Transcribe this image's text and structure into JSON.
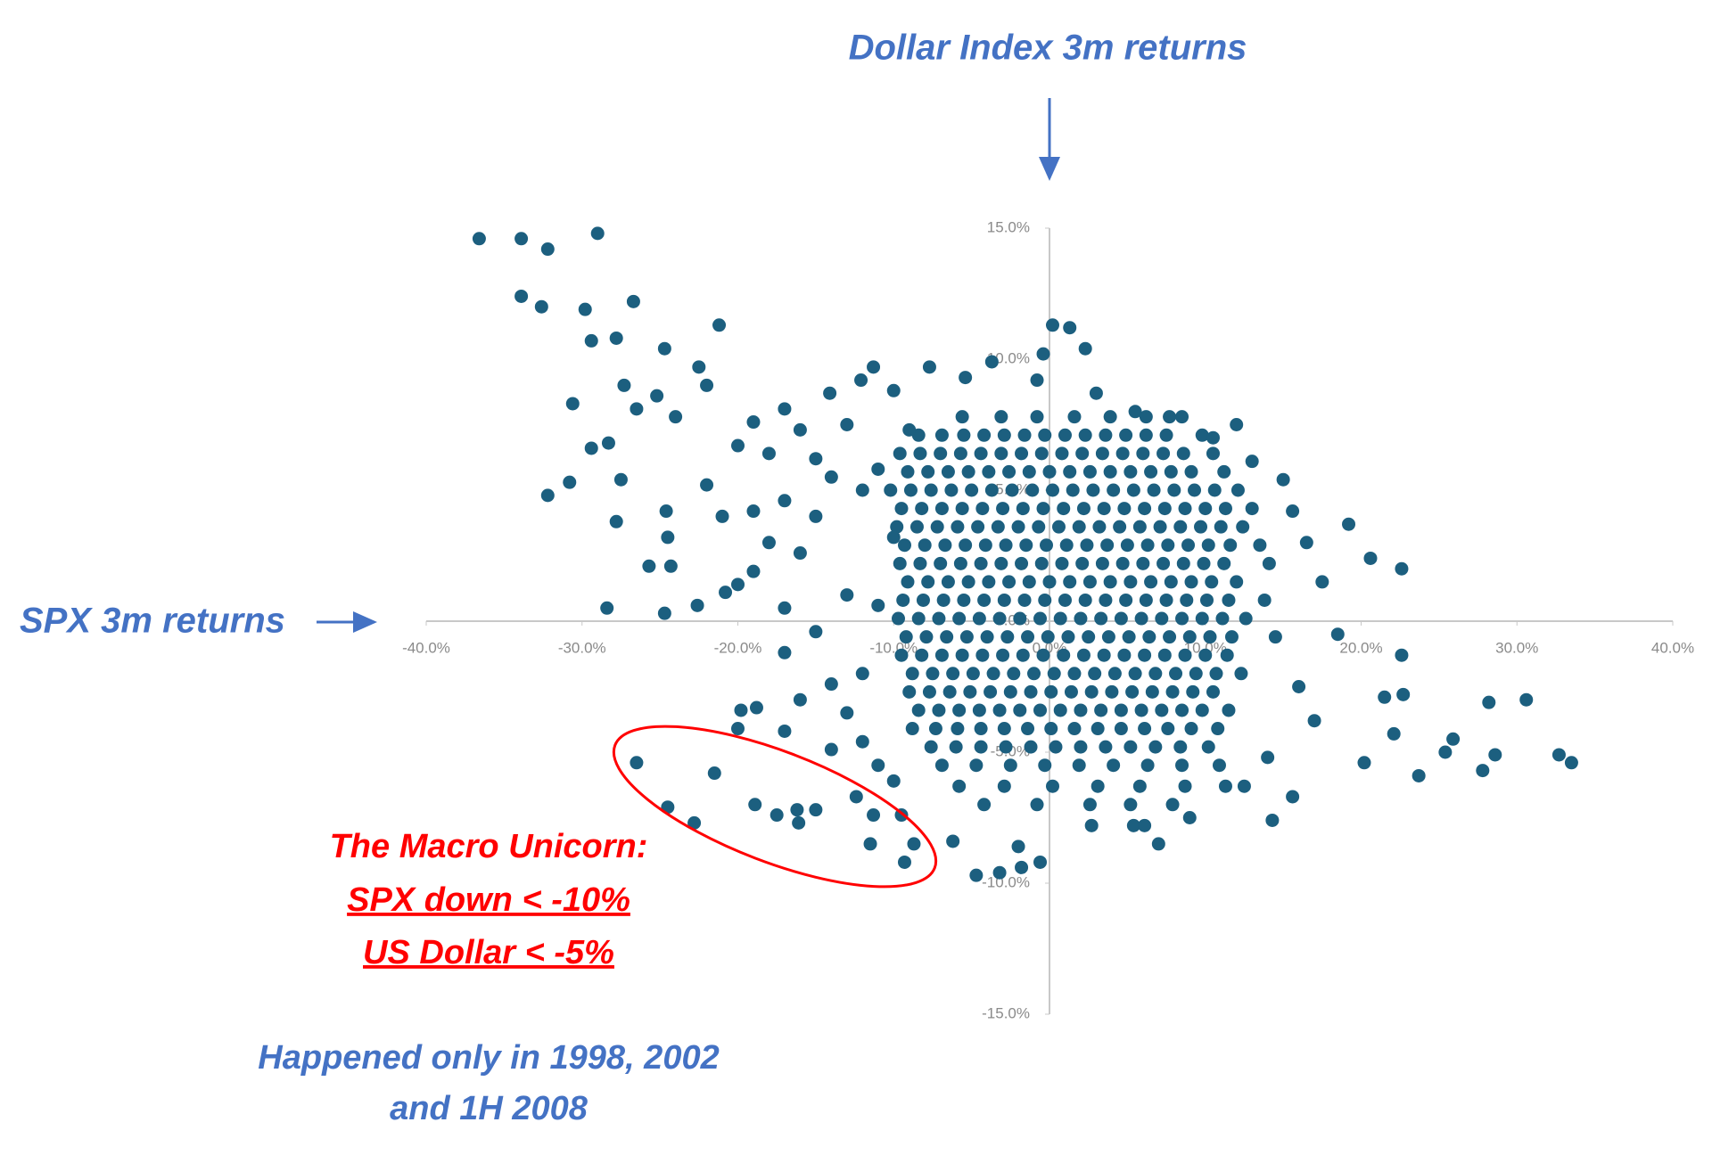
{
  "chart_data": {
    "type": "scatter",
    "x_label": "SPX 3m returns",
    "y_label": "Dollar Index 3m returns",
    "annotation_lines": [
      "The Macro Unicorn:",
      "SPX down < -10%",
      "US Dollar < -5%"
    ],
    "note_lines": [
      "Happened only in 1998, 2002",
      "and 1H 2008"
    ],
    "color": "#1c5f7f",
    "xlim": [
      -40,
      40
    ],
    "ylim": [
      -15,
      15
    ],
    "xticks": [
      {
        "value": -40,
        "label": "-40.0%"
      },
      {
        "value": -30,
        "label": "-30.0%"
      },
      {
        "value": -20,
        "label": "-20.0%"
      },
      {
        "value": -10,
        "label": "-10.0%"
      },
      {
        "value": 0,
        "label": "0.0%"
      },
      {
        "value": 10,
        "label": "10.0%"
      },
      {
        "value": 20,
        "label": "20.0%"
      },
      {
        "value": 30,
        "label": "30.0%"
      },
      {
        "value": 40,
        "label": "40.0%"
      }
    ],
    "yticks": [
      {
        "value": -15,
        "label": "-15.0%"
      },
      {
        "value": -10,
        "label": "-10.0%"
      },
      {
        "value": -5,
        "label": "-5.0%"
      },
      {
        "value": 0,
        "label": "0.0%"
      },
      {
        "value": 5,
        "label": "5.0%"
      },
      {
        "value": 10,
        "label": "10.0%"
      },
      {
        "value": 15,
        "label": "15.0%"
      }
    ],
    "x": [
      -5.6,
      -3.1,
      -0.8,
      1.6,
      3.9,
      6.2,
      7.7,
      -8.4,
      -6.9,
      -5.5,
      -4.2,
      -2.9,
      -1.6,
      -0.3,
      1.0,
      2.3,
      3.6,
      4.9,
      6.2,
      7.5,
      9.8,
      -9.6,
      -8.3,
      -7.0,
      -5.7,
      -4.4,
      -3.1,
      -1.8,
      -0.5,
      0.8,
      2.1,
      3.4,
      4.7,
      6.0,
      7.3,
      8.6,
      10.5,
      -9.1,
      -7.8,
      -6.5,
      -5.2,
      -3.9,
      -2.6,
      -1.3,
      0.0,
      1.3,
      2.6,
      3.9,
      5.2,
      6.5,
      7.8,
      9.1,
      11.2,
      -10.2,
      -8.9,
      -7.6,
      -6.3,
      -5.0,
      -3.7,
      -2.4,
      -1.1,
      0.2,
      1.5,
      2.8,
      4.1,
      5.4,
      6.7,
      8.0,
      9.3,
      10.6,
      12.1,
      -9.5,
      -8.2,
      -6.9,
      -5.6,
      -4.3,
      -3.0,
      -1.7,
      -0.4,
      0.9,
      2.2,
      3.5,
      4.8,
      6.1,
      7.4,
      8.7,
      10.0,
      11.3,
      13.0,
      -9.8,
      -8.5,
      -7.2,
      -5.9,
      -4.6,
      -3.3,
      -2.0,
      -0.7,
      0.6,
      1.9,
      3.2,
      4.5,
      5.8,
      7.1,
      8.4,
      9.7,
      11.0,
      12.4,
      -9.3,
      -8.0,
      -6.7,
      -5.4,
      -4.1,
      -2.8,
      -1.5,
      -0.2,
      1.1,
      2.4,
      3.7,
      5.0,
      6.3,
      7.6,
      8.9,
      10.2,
      11.6,
      13.5,
      -9.6,
      -8.3,
      -7.0,
      -5.7,
      -4.4,
      -3.1,
      -1.8,
      -0.5,
      0.8,
      2.1,
      3.4,
      4.7,
      6.0,
      7.3,
      8.6,
      9.9,
      11.2,
      14.1,
      -9.1,
      -7.8,
      -6.5,
      -5.2,
      -3.9,
      -2.6,
      -1.3,
      0.0,
      1.3,
      2.6,
      3.9,
      5.2,
      6.5,
      7.8,
      9.1,
      10.4,
      12.0,
      -9.4,
      -8.1,
      -6.8,
      -5.5,
      -4.2,
      -2.9,
      -1.6,
      -0.3,
      1.0,
      2.3,
      3.6,
      4.9,
      6.2,
      7.5,
      8.8,
      10.1,
      11.5,
      13.8,
      -9.7,
      -8.4,
      -7.1,
      -5.8,
      -4.5,
      -3.2,
      -1.9,
      -0.6,
      0.7,
      2.0,
      3.3,
      4.6,
      5.9,
      7.2,
      8.5,
      9.8,
      11.1,
      12.6,
      -9.2,
      -7.9,
      -6.6,
      -5.3,
      -4.0,
      -2.7,
      -1.4,
      -0.1,
      1.2,
      2.5,
      3.8,
      5.1,
      6.4,
      7.7,
      9.0,
      10.3,
      11.7,
      14.5,
      -9.5,
      -8.2,
      -6.9,
      -5.6,
      -4.3,
      -3.0,
      -1.7,
      -0.4,
      0.9,
      2.2,
      3.5,
      4.8,
      6.1,
      7.4,
      8.7,
      10.0,
      11.4,
      -8.8,
      -7.5,
      -6.2,
      -4.9,
      -3.6,
      -2.3,
      -1.0,
      0.3,
      1.6,
      2.9,
      4.2,
      5.5,
      6.8,
      8.1,
      9.4,
      10.7,
      12.3,
      -9.0,
      -7.7,
      -6.4,
      -5.1,
      -3.8,
      -2.5,
      -1.2,
      0.1,
      1.4,
      2.7,
      4.0,
      5.3,
      6.6,
      7.9,
      9.2,
      10.5,
      -8.4,
      -7.1,
      -5.8,
      -4.5,
      -3.2,
      -1.9,
      -0.6,
      0.7,
      2.0,
      3.3,
      4.6,
      5.9,
      7.2,
      8.5,
      9.8,
      11.5,
      -8.8,
      -7.3,
      -5.9,
      -4.4,
      -2.9,
      -1.4,
      0.1,
      1.6,
      3.1,
      4.6,
      6.1,
      7.6,
      9.1,
      10.8,
      -7.6,
      -6.0,
      -4.4,
      -2.8,
      -1.2,
      0.4,
      2.0,
      3.6,
      5.2,
      6.8,
      8.4,
      10.2,
      -6.9,
      -4.7,
      -2.5,
      -0.3,
      1.9,
      4.1,
      6.3,
      8.5,
      10.9,
      -5.8,
      -2.9,
      0.2,
      3.1,
      5.8,
      8.7,
      11.3,
      -4.2,
      -0.8,
      2.6,
      5.2,
      7.9,
      2.7,
      5.4,
      6.1,
      -36.6,
      -33.9,
      -32.2,
      -29,
      -33.9,
      -32.6,
      -29.8,
      -26.7,
      -21.2,
      -29.4,
      -27.8,
      -24.7,
      -22.5,
      -22,
      -27.3,
      -25.2,
      -30.6,
      -26.5,
      -24,
      -28.3,
      -29.4,
      -27.5,
      -30.8,
      -32.2,
      -24.6,
      -27.8,
      -24.5,
      -25.7,
      -24.3,
      -28.4,
      -24.7,
      -22.6,
      -20.8,
      -19.8,
      -18.8,
      -20,
      -26.5,
      -24.5,
      -22.8,
      -21.5,
      -18.9,
      -17.5,
      -16.2,
      -15,
      -16.1,
      -12.4,
      -11.3,
      -11.5,
      -9.5,
      -8.7,
      -9.3,
      -6.2,
      -4.7,
      -3.2,
      -2,
      -1.8,
      -0.6,
      19.2,
      20.6,
      22.6,
      22.6,
      21.5,
      22.7,
      28.2,
      30.6,
      22.1,
      25.9,
      25.4,
      28.6,
      27.8,
      32.7,
      33.5,
      20.2,
      23.7,
      15.6,
      14.3,
      15.6,
      0.2,
      1.3,
      2.3,
      -0.4,
      -3.7,
      -0.8,
      -5.4,
      -7.7,
      -11.3,
      -12.1,
      -14.1,
      -10,
      3,
      -19,
      -17,
      -16,
      -18,
      -20,
      -15,
      -13,
      -14,
      -17,
      -19,
      -15,
      -12,
      -16,
      -19,
      -20,
      -17,
      -13,
      -15,
      -17,
      -14,
      -16,
      -13,
      -17,
      -12,
      -14,
      -11,
      -10,
      -12,
      -11,
      -10,
      -11,
      -9,
      -22,
      -21,
      -18,
      13,
      15,
      16.5,
      17.5,
      18.5,
      16,
      17,
      14,
      12.5,
      9,
      7,
      5.5,
      8.5,
      10.5,
      12
    ],
    "values": [
      7.8,
      7.8,
      7.8,
      7.8,
      7.8,
      7.8,
      7.8,
      7.1,
      7.1,
      7.1,
      7.1,
      7.1,
      7.1,
      7.1,
      7.1,
      7.1,
      7.1,
      7.1,
      7.1,
      7.1,
      7.1,
      6.4,
      6.4,
      6.4,
      6.4,
      6.4,
      6.4,
      6.4,
      6.4,
      6.4,
      6.4,
      6.4,
      6.4,
      6.4,
      6.4,
      6.4,
      6.4,
      5.7,
      5.7,
      5.7,
      5.7,
      5.7,
      5.7,
      5.7,
      5.7,
      5.7,
      5.7,
      5.7,
      5.7,
      5.7,
      5.7,
      5.7,
      5.7,
      5,
      5,
      5,
      5,
      5,
      5,
      5,
      5,
      5,
      5,
      5,
      5,
      5,
      5,
      5,
      5,
      5,
      5,
      4.3,
      4.3,
      4.3,
      4.3,
      4.3,
      4.3,
      4.3,
      4.3,
      4.3,
      4.3,
      4.3,
      4.3,
      4.3,
      4.3,
      4.3,
      4.3,
      4.3,
      4.3,
      3.6,
      3.6,
      3.6,
      3.6,
      3.6,
      3.6,
      3.6,
      3.6,
      3.6,
      3.6,
      3.6,
      3.6,
      3.6,
      3.6,
      3.6,
      3.6,
      3.6,
      3.6,
      2.9,
      2.9,
      2.9,
      2.9,
      2.9,
      2.9,
      2.9,
      2.9,
      2.9,
      2.9,
      2.9,
      2.9,
      2.9,
      2.9,
      2.9,
      2.9,
      2.9,
      2.9,
      2.2,
      2.2,
      2.2,
      2.2,
      2.2,
      2.2,
      2.2,
      2.2,
      2.2,
      2.2,
      2.2,
      2.2,
      2.2,
      2.2,
      2.2,
      2.2,
      2.2,
      2.2,
      1.5,
      1.5,
      1.5,
      1.5,
      1.5,
      1.5,
      1.5,
      1.5,
      1.5,
      1.5,
      1.5,
      1.5,
      1.5,
      1.5,
      1.5,
      1.5,
      1.5,
      0.8,
      0.8,
      0.8,
      0.8,
      0.8,
      0.8,
      0.8,
      0.8,
      0.8,
      0.8,
      0.8,
      0.8,
      0.8,
      0.8,
      0.8,
      0.8,
      0.8,
      0.8,
      0.1,
      0.1,
      0.1,
      0.1,
      0.1,
      0.1,
      0.1,
      0.1,
      0.1,
      0.1,
      0.1,
      0.1,
      0.1,
      0.1,
      0.1,
      0.1,
      0.1,
      0.1,
      -0.6,
      -0.6,
      -0.6,
      -0.6,
      -0.6,
      -0.6,
      -0.6,
      -0.6,
      -0.6,
      -0.6,
      -0.6,
      -0.6,
      -0.6,
      -0.6,
      -0.6,
      -0.6,
      -0.6,
      -0.6,
      -1.3,
      -1.3,
      -1.3,
      -1.3,
      -1.3,
      -1.3,
      -1.3,
      -1.3,
      -1.3,
      -1.3,
      -1.3,
      -1.3,
      -1.3,
      -1.3,
      -1.3,
      -1.3,
      -1.3,
      -2,
      -2,
      -2,
      -2,
      -2,
      -2,
      -2,
      -2,
      -2,
      -2,
      -2,
      -2,
      -2,
      -2,
      -2,
      -2,
      -2,
      -2.7,
      -2.7,
      -2.7,
      -2.7,
      -2.7,
      -2.7,
      -2.7,
      -2.7,
      -2.7,
      -2.7,
      -2.7,
      -2.7,
      -2.7,
      -2.7,
      -2.7,
      -2.7,
      -3.4,
      -3.4,
      -3.4,
      -3.4,
      -3.4,
      -3.4,
      -3.4,
      -3.4,
      -3.4,
      -3.4,
      -3.4,
      -3.4,
      -3.4,
      -3.4,
      -3.4,
      -3.4,
      -4.1,
      -4.1,
      -4.1,
      -4.1,
      -4.1,
      -4.1,
      -4.1,
      -4.1,
      -4.1,
      -4.1,
      -4.1,
      -4.1,
      -4.1,
      -4.1,
      -4.8,
      -4.8,
      -4.8,
      -4.8,
      -4.8,
      -4.8,
      -4.8,
      -4.8,
      -4.8,
      -4.8,
      -4.8,
      -4.8,
      -5.5,
      -5.5,
      -5.5,
      -5.5,
      -5.5,
      -5.5,
      -5.5,
      -5.5,
      -5.5,
      -6.3,
      -6.3,
      -6.3,
      -6.3,
      -6.3,
      -6.3,
      -6.3,
      -7,
      -7,
      -7,
      -7,
      -7,
      -7.8,
      -7.8,
      -7.8,
      14.6,
      14.6,
      14.2,
      14.8,
      12.4,
      12,
      11.9,
      12.2,
      11.3,
      10.7,
      10.8,
      10.4,
      9.7,
      9,
      9,
      8.6,
      8.3,
      8.1,
      7.8,
      6.8,
      6.6,
      5.4,
      5.3,
      4.8,
      4.2,
      3.8,
      3.2,
      2.1,
      2.1,
      0.5,
      0.3,
      0.6,
      1.1,
      -3.4,
      -3.3,
      -4.1,
      -5.4,
      -7.1,
      -7.7,
      -5.8,
      -7,
      -7.4,
      -7.2,
      -7.2,
      -7.7,
      -6.7,
      -7.4,
      -8.5,
      -7.4,
      -8.5,
      -9.2,
      -8.4,
      -9.7,
      -9.6,
      -8.6,
      -9.4,
      -9.2,
      3.7,
      2.4,
      2,
      -1.3,
      -2.9,
      -2.8,
      -3.1,
      -3,
      -4.3,
      -4.5,
      -5,
      -5.1,
      -5.7,
      -5.1,
      -5.4,
      -5.4,
      -5.9,
      -6.7,
      -7.6,
      4.2,
      11.3,
      11.2,
      10.4,
      10.2,
      9.9,
      9.2,
      9.3,
      9.7,
      9.7,
      9.2,
      8.7,
      8.8,
      8.7,
      7.6,
      8.1,
      7.3,
      6.4,
      6.7,
      6.2,
      7.5,
      5.5,
      4.6,
      4.2,
      4,
      5,
      2.6,
      1.9,
      1.4,
      0.5,
      1,
      -0.4,
      -1.2,
      -2.4,
      -3,
      -3.5,
      -4.2,
      -4.6,
      -4.9,
      -5.5,
      -6.1,
      -2,
      0.6,
      3.2,
      5.8,
      7.3,
      5.2,
      4,
      3,
      6.1,
      5.4,
      3,
      1.5,
      -0.5,
      -2.5,
      -3.8,
      -5.2,
      -6.3,
      -7.5,
      -8.5,
      8,
      7.8,
      7,
      7.5
    ]
  }
}
